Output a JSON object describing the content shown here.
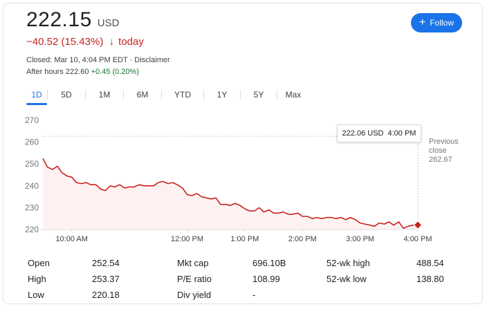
{
  "quote": {
    "price": "222.15",
    "currency": "USD",
    "change": "−40.52 (15.43%)",
    "change_arrow": "🡣",
    "change_period": "today",
    "closed_line": "Closed: Mar 10, 4:04 PM EDT · Disclaimer",
    "after_hours_label": "After hours 222.60",
    "after_hours_change": "+0.45 (0.20%)"
  },
  "follow_button": {
    "icon": "plus-icon",
    "label": "Follow"
  },
  "range_tabs": [
    "1D",
    "5D",
    "1M",
    "6M",
    "YTD",
    "1Y",
    "5Y",
    "Max"
  ],
  "active_tab": "1D",
  "tooltip": {
    "value": "222.06 USD",
    "time": "4:00 PM"
  },
  "previous_close": {
    "line1": "Previous",
    "line2": "close",
    "value": "262.67"
  },
  "stats": [
    {
      "label": "Open",
      "value": "252.54"
    },
    {
      "label": "High",
      "value": "253.37"
    },
    {
      "label": "Low",
      "value": "220.18"
    },
    {
      "label": "Mkt cap",
      "value": "696.10B"
    },
    {
      "label": "P/E ratio",
      "value": "108.99"
    },
    {
      "label": "Div yield",
      "value": "-"
    },
    {
      "label": "52-wk high",
      "value": "488.54"
    },
    {
      "label": "52-wk low",
      "value": "138.80"
    }
  ],
  "colors": {
    "accent": "#1a73e8",
    "negative": "#c5221f",
    "positive": "#137333",
    "line": "#c5221f"
  },
  "chart_data": {
    "type": "line",
    "title": "",
    "xlabel": "",
    "ylabel": "",
    "ylim": [
      220,
      270
    ],
    "yticks": [
      270,
      260,
      250,
      240,
      230,
      220
    ],
    "xticks": [
      "10:00 AM",
      "12:00 PM",
      "1:00 PM",
      "2:00 PM",
      "3:00 PM",
      "4:00 PM"
    ],
    "xtick_hours": [
      10,
      12,
      13,
      14,
      15,
      16
    ],
    "x_start_hour": 9.5,
    "x_end_hour": 16,
    "reference_line": 262.67,
    "grid": false,
    "series": [
      {
        "name": "",
        "x": [
          9.5,
          9.58,
          9.67,
          9.75,
          9.83,
          9.92,
          10.0,
          10.08,
          10.17,
          10.25,
          10.33,
          10.42,
          10.5,
          10.58,
          10.67,
          10.75,
          10.83,
          10.92,
          11.0,
          11.08,
          11.17,
          11.25,
          11.33,
          11.42,
          11.5,
          11.58,
          11.67,
          11.75,
          11.83,
          11.92,
          12.0,
          12.08,
          12.17,
          12.25,
          12.33,
          12.42,
          12.5,
          12.58,
          12.67,
          12.75,
          12.83,
          12.92,
          13.0,
          13.08,
          13.17,
          13.25,
          13.33,
          13.42,
          13.5,
          13.58,
          13.67,
          13.75,
          13.83,
          13.92,
          14.0,
          14.08,
          14.17,
          14.25,
          14.33,
          14.42,
          14.5,
          14.58,
          14.67,
          14.75,
          14.83,
          14.92,
          15.0,
          15.08,
          15.17,
          15.25,
          15.33,
          15.42,
          15.5,
          15.58,
          15.67,
          15.75,
          15.83,
          15.92,
          16.0
        ],
        "y": [
          252.5,
          248.5,
          247.5,
          249.0,
          246.0,
          244.5,
          244.0,
          241.5,
          241.0,
          241.5,
          240.5,
          240.5,
          238.5,
          237.8,
          240.0,
          239.5,
          240.5,
          239.0,
          239.5,
          239.5,
          240.5,
          240.0,
          240.0,
          240.0,
          241.5,
          242.0,
          241.0,
          241.5,
          240.5,
          239.0,
          236.0,
          235.5,
          236.5,
          235.0,
          234.5,
          234.0,
          234.5,
          231.5,
          231.5,
          231.0,
          232.0,
          231.0,
          229.5,
          228.5,
          228.5,
          230.0,
          228.0,
          229.0,
          227.5,
          227.5,
          228.0,
          227.0,
          227.0,
          227.5,
          226.0,
          226.0,
          225.0,
          225.5,
          225.0,
          225.5,
          225.5,
          225.0,
          225.5,
          224.5,
          225.5,
          224.5,
          223.0,
          222.5,
          222.0,
          221.5,
          223.0,
          222.5,
          223.5,
          222.0,
          223.5,
          220.5,
          221.5,
          222.0,
          222.5
        ]
      }
    ],
    "highlight_point": {
      "x": 16,
      "y": 222.06
    }
  }
}
